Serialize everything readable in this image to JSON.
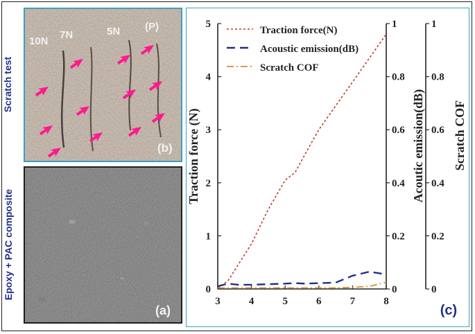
{
  "side_labels": {
    "top": "Scratch test",
    "bottom": "Epoxy + PAC composite"
  },
  "panel_b": {
    "label": "(b)",
    "load_labels": [
      "10N",
      "7N",
      "5N",
      "(P)"
    ],
    "arrow_color": "#ff1a8c",
    "arrow_icon": "arrow-icon"
  },
  "panel_a": {
    "label": "(a)"
  },
  "panel_c": {
    "label": "(c)"
  },
  "colors": {
    "accent_text": "#1f2f8c",
    "panel_border": "#3aa0c4",
    "traction": "#c0392b",
    "acoustic": "#1f2f8c",
    "cof": "#e08a2c"
  },
  "chart_data": {
    "type": "line",
    "x": [
      3,
      3.3,
      3.6,
      4,
      4.5,
      5,
      5.3,
      5.6,
      6,
      6.5,
      7,
      7.5,
      8
    ],
    "xlim": [
      3,
      8
    ],
    "x_ticks": [
      "3",
      "4",
      "5",
      "6",
      "7",
      "8"
    ],
    "axes": [
      {
        "id": "left",
        "label": "Traction force (N)",
        "ylim": [
          0,
          5
        ],
        "ticks": [
          "0",
          "1",
          "2",
          "3",
          "4",
          "5"
        ]
      },
      {
        "id": "right1",
        "label": "Acoutic emission(dB)",
        "ylim": [
          0,
          1
        ],
        "ticks": [
          "0",
          "0.2",
          "0.4",
          "0.6",
          "0.8",
          "1"
        ]
      },
      {
        "id": "right2",
        "label": "Scratch COF",
        "ylim": [
          0,
          1
        ],
        "ticks": [
          "0",
          "0.2",
          "0.4",
          "0.6",
          "0.8",
          "1"
        ]
      }
    ],
    "series": [
      {
        "name": "Traction force(N)",
        "axis": "left",
        "style": "dotted",
        "color": "#c0392b",
        "values": [
          0.02,
          0.15,
          0.45,
          0.85,
          1.5,
          2.05,
          2.2,
          2.55,
          3.0,
          3.45,
          3.9,
          4.35,
          4.8
        ]
      },
      {
        "name": "Acoustic emission(dB)",
        "axis": "right1",
        "style": "dashed",
        "color": "#1f2f8c",
        "values": [
          0.01,
          0.02,
          0.016,
          0.016,
          0.018,
          0.02,
          0.022,
          0.02,
          0.022,
          0.024,
          0.05,
          0.065,
          0.055
        ]
      },
      {
        "name": "Scratch COF",
        "axis": "right2",
        "style": "dashdot",
        "color": "#e08a2c",
        "values": [
          0.004,
          0.004,
          0.004,
          0.004,
          0.004,
          0.004,
          0.004,
          0.004,
          0.004,
          0.004,
          0.006,
          0.01,
          0.025
        ]
      }
    ],
    "legend_position": "top-center",
    "grid": false
  }
}
